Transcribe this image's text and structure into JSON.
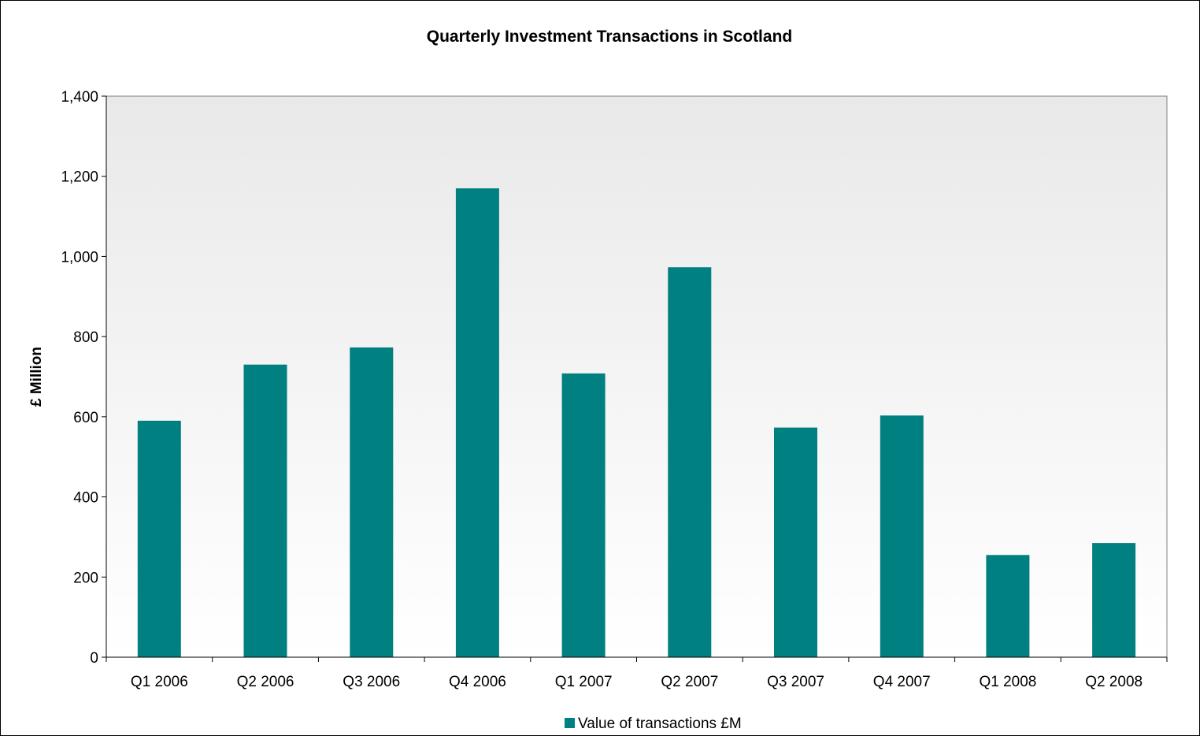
{
  "chart_data": {
    "type": "bar",
    "title": "Quarterly Investment Transactions in Scotland",
    "xlabel": "",
    "ylabel": "£ Million",
    "categories": [
      "Q1 2006",
      "Q2 2006",
      "Q3 2006",
      "Q4 2006",
      "Q1 2007",
      "Q2 2007",
      "Q3 2007",
      "Q4 2007",
      "Q1 2008",
      "Q2 2008"
    ],
    "series": [
      {
        "name": "Value of transactions £M",
        "values": [
          590,
          730,
          773,
          1170,
          708,
          973,
          573,
          603,
          255,
          285
        ],
        "color": "#008080"
      }
    ],
    "ylim": [
      0,
      1400
    ],
    "yticks": [
      0,
      200,
      400,
      600,
      800,
      1000,
      1200,
      1400
    ],
    "ytick_labels": [
      "0",
      "200",
      "400",
      "600",
      "800",
      "1,000",
      "1,200",
      "1,400"
    ],
    "grid": false,
    "legend_position": "bottom",
    "plot_background": "gradient light grey to white"
  }
}
